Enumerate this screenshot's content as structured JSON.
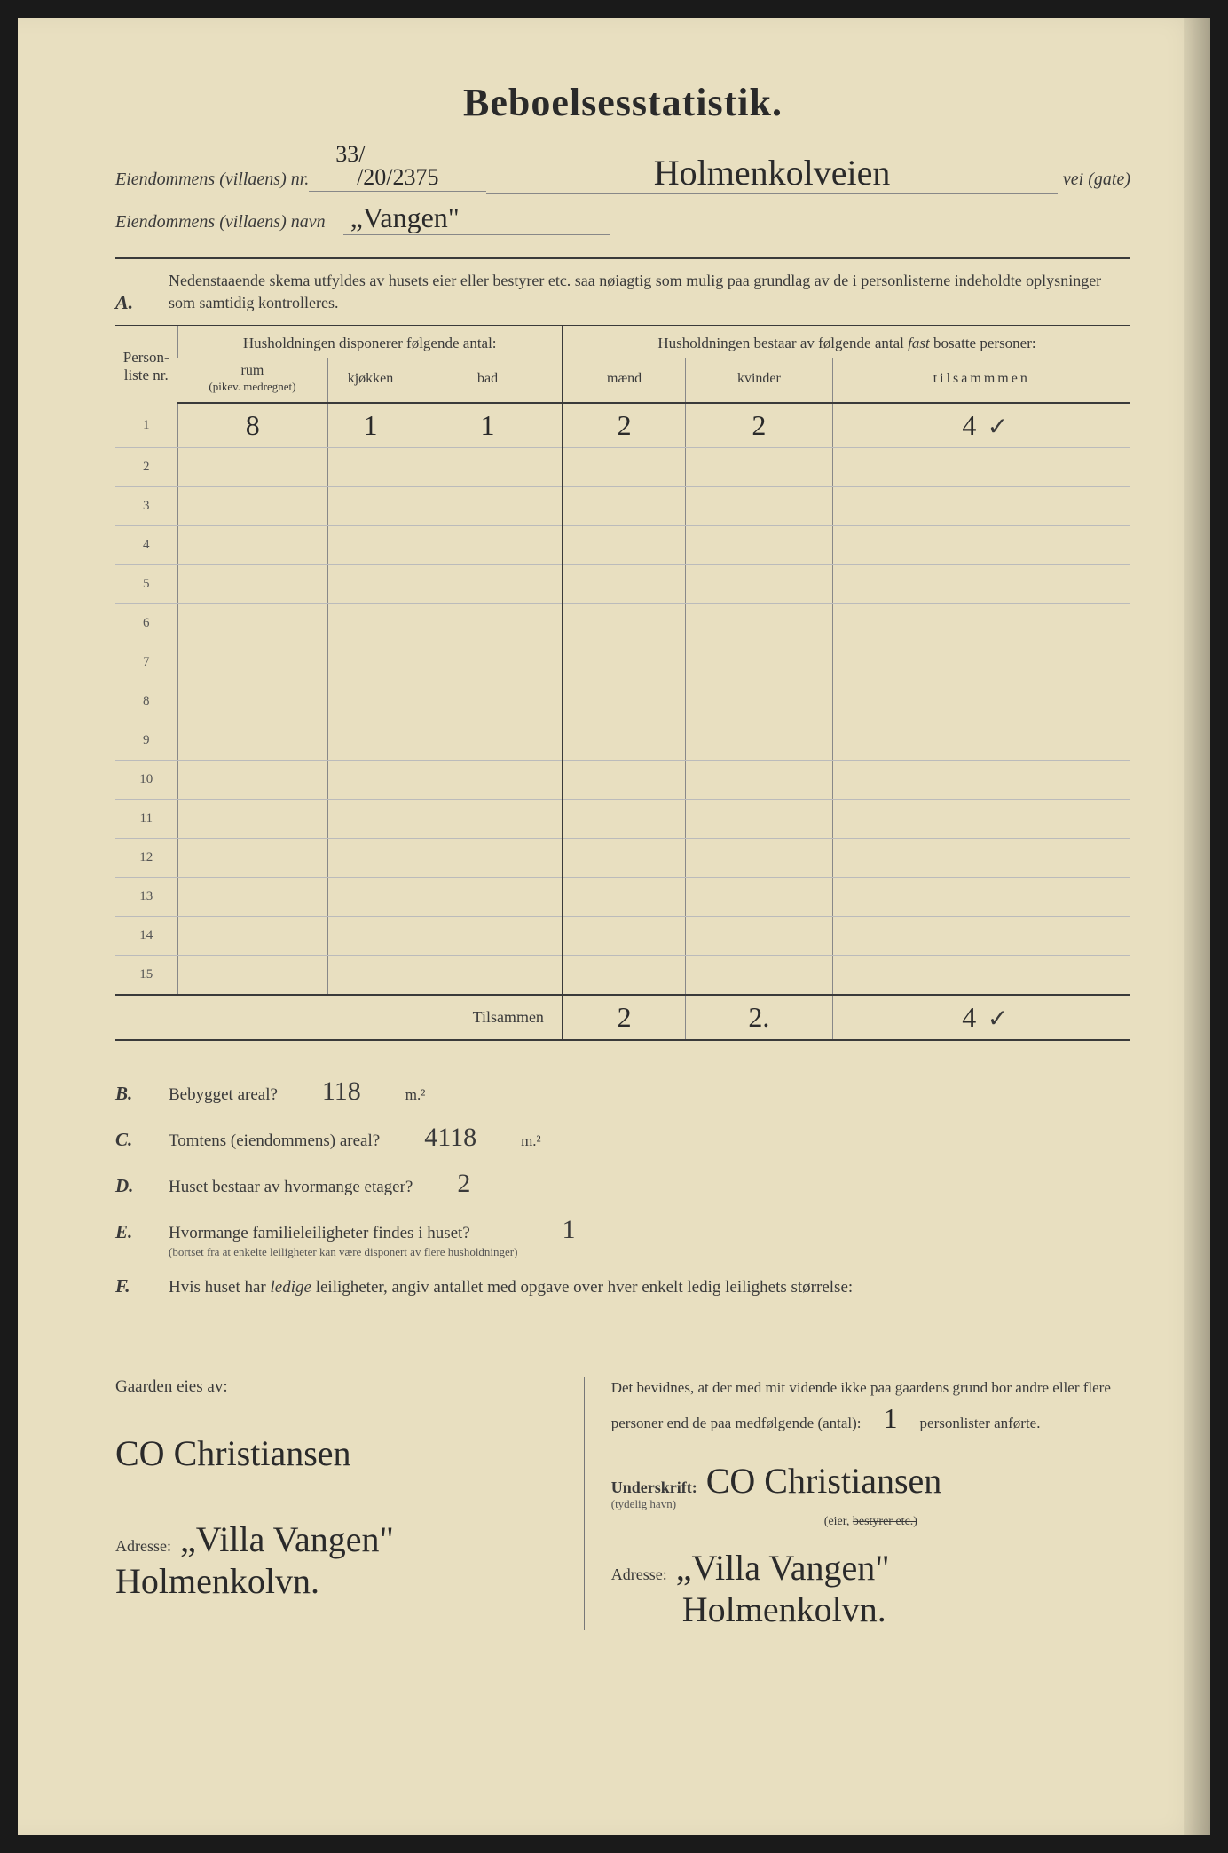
{
  "title": "Beboelsesstatistik.",
  "header": {
    "line1_label": "Eiendommens (villaens) nr.",
    "line1_nr_top": "33/",
    "line1_nr_bottom": "/20/2375",
    "line1_street": "Holmenkolveien",
    "line1_suffix": "vei (gate)",
    "line2_label": "Eiendommens (villaens) navn",
    "line2_name": "„Vangen\""
  },
  "section_a": {
    "label": "A.",
    "instructions": "Nedenstaaende skema utfyldes av husets eier eller bestyrer etc. saa nøiagtig som mulig paa grundlag av de i personlisterne indeholdte oplysninger som samtidig kontrolleres."
  },
  "table": {
    "col_personliste": "Person-liste nr.",
    "group1_header": "Husholdningen disponerer følgende antal:",
    "group2_header": "Husholdningen bestaar av følgende antal fast bosatte personer:",
    "col_rum": "rum",
    "col_rum_sub": "(pikev. medregnet)",
    "col_kjokken": "kjøkken",
    "col_bad": "bad",
    "col_maend": "mænd",
    "col_kvinder": "kvinder",
    "col_tilsammen": "tilsammmen",
    "rows": [
      {
        "n": "1",
        "rum": "8",
        "kjokken": "1",
        "bad": "1",
        "maend": "2",
        "kvinder": "2",
        "tilsammen": "4",
        "check": "✓"
      },
      {
        "n": "2"
      },
      {
        "n": "3"
      },
      {
        "n": "4"
      },
      {
        "n": "5"
      },
      {
        "n": "6"
      },
      {
        "n": "7"
      },
      {
        "n": "8"
      },
      {
        "n": "9"
      },
      {
        "n": "10"
      },
      {
        "n": "11"
      },
      {
        "n": "12"
      },
      {
        "n": "13"
      },
      {
        "n": "14"
      },
      {
        "n": "15"
      }
    ],
    "tilsammen_label": "Tilsammen",
    "totals": {
      "maend": "2",
      "kvinder": "2.",
      "tilsammen": "4",
      "check": "✓"
    }
  },
  "questions": {
    "b": {
      "label": "B.",
      "text": "Bebygget areal?",
      "value": "118",
      "unit": "m.²"
    },
    "c": {
      "label": "C.",
      "text": "Tomtens (eiendommens) areal?",
      "value": "4118",
      "unit": "m.²"
    },
    "d": {
      "label": "D.",
      "text": "Huset bestaar av hvormange etager?",
      "value": "2"
    },
    "e": {
      "label": "E.",
      "text": "Hvormange familieleiligheter findes i huset?",
      "sub": "(bortset fra at enkelte leiligheter kan være disponert av flere husholdninger)",
      "value": "1"
    },
    "f": {
      "label": "F.",
      "text": "Hvis huset har ledige leiligheter, angiv antallet med opgave over hver enkelt ledig leilighets størrelse:"
    }
  },
  "bottom": {
    "left_heading": "Gaarden eies av:",
    "owner_signature": "CO Christiansen",
    "adresse_label": "Adresse:",
    "left_address1": "„Villa Vangen\"",
    "left_address2": "Holmenkolvn.",
    "right_attest": "Det bevidnes, at der med mit vidende ikke paa gaardens grund bor andre eller flere personer end de paa medfølgende (antal):",
    "right_antal": "1",
    "right_attest_suffix": "personlister anførte.",
    "underskrift_label": "Underskrift:",
    "underskrift_sub": "(tydelig havn)",
    "right_signature": "CO Christiansen",
    "eier_label": "(eier,",
    "bestyrer_strike": "bestyrer etc.)",
    "right_address1": "„Villa Vangen\"",
    "right_address2": "Holmenkolvn."
  }
}
